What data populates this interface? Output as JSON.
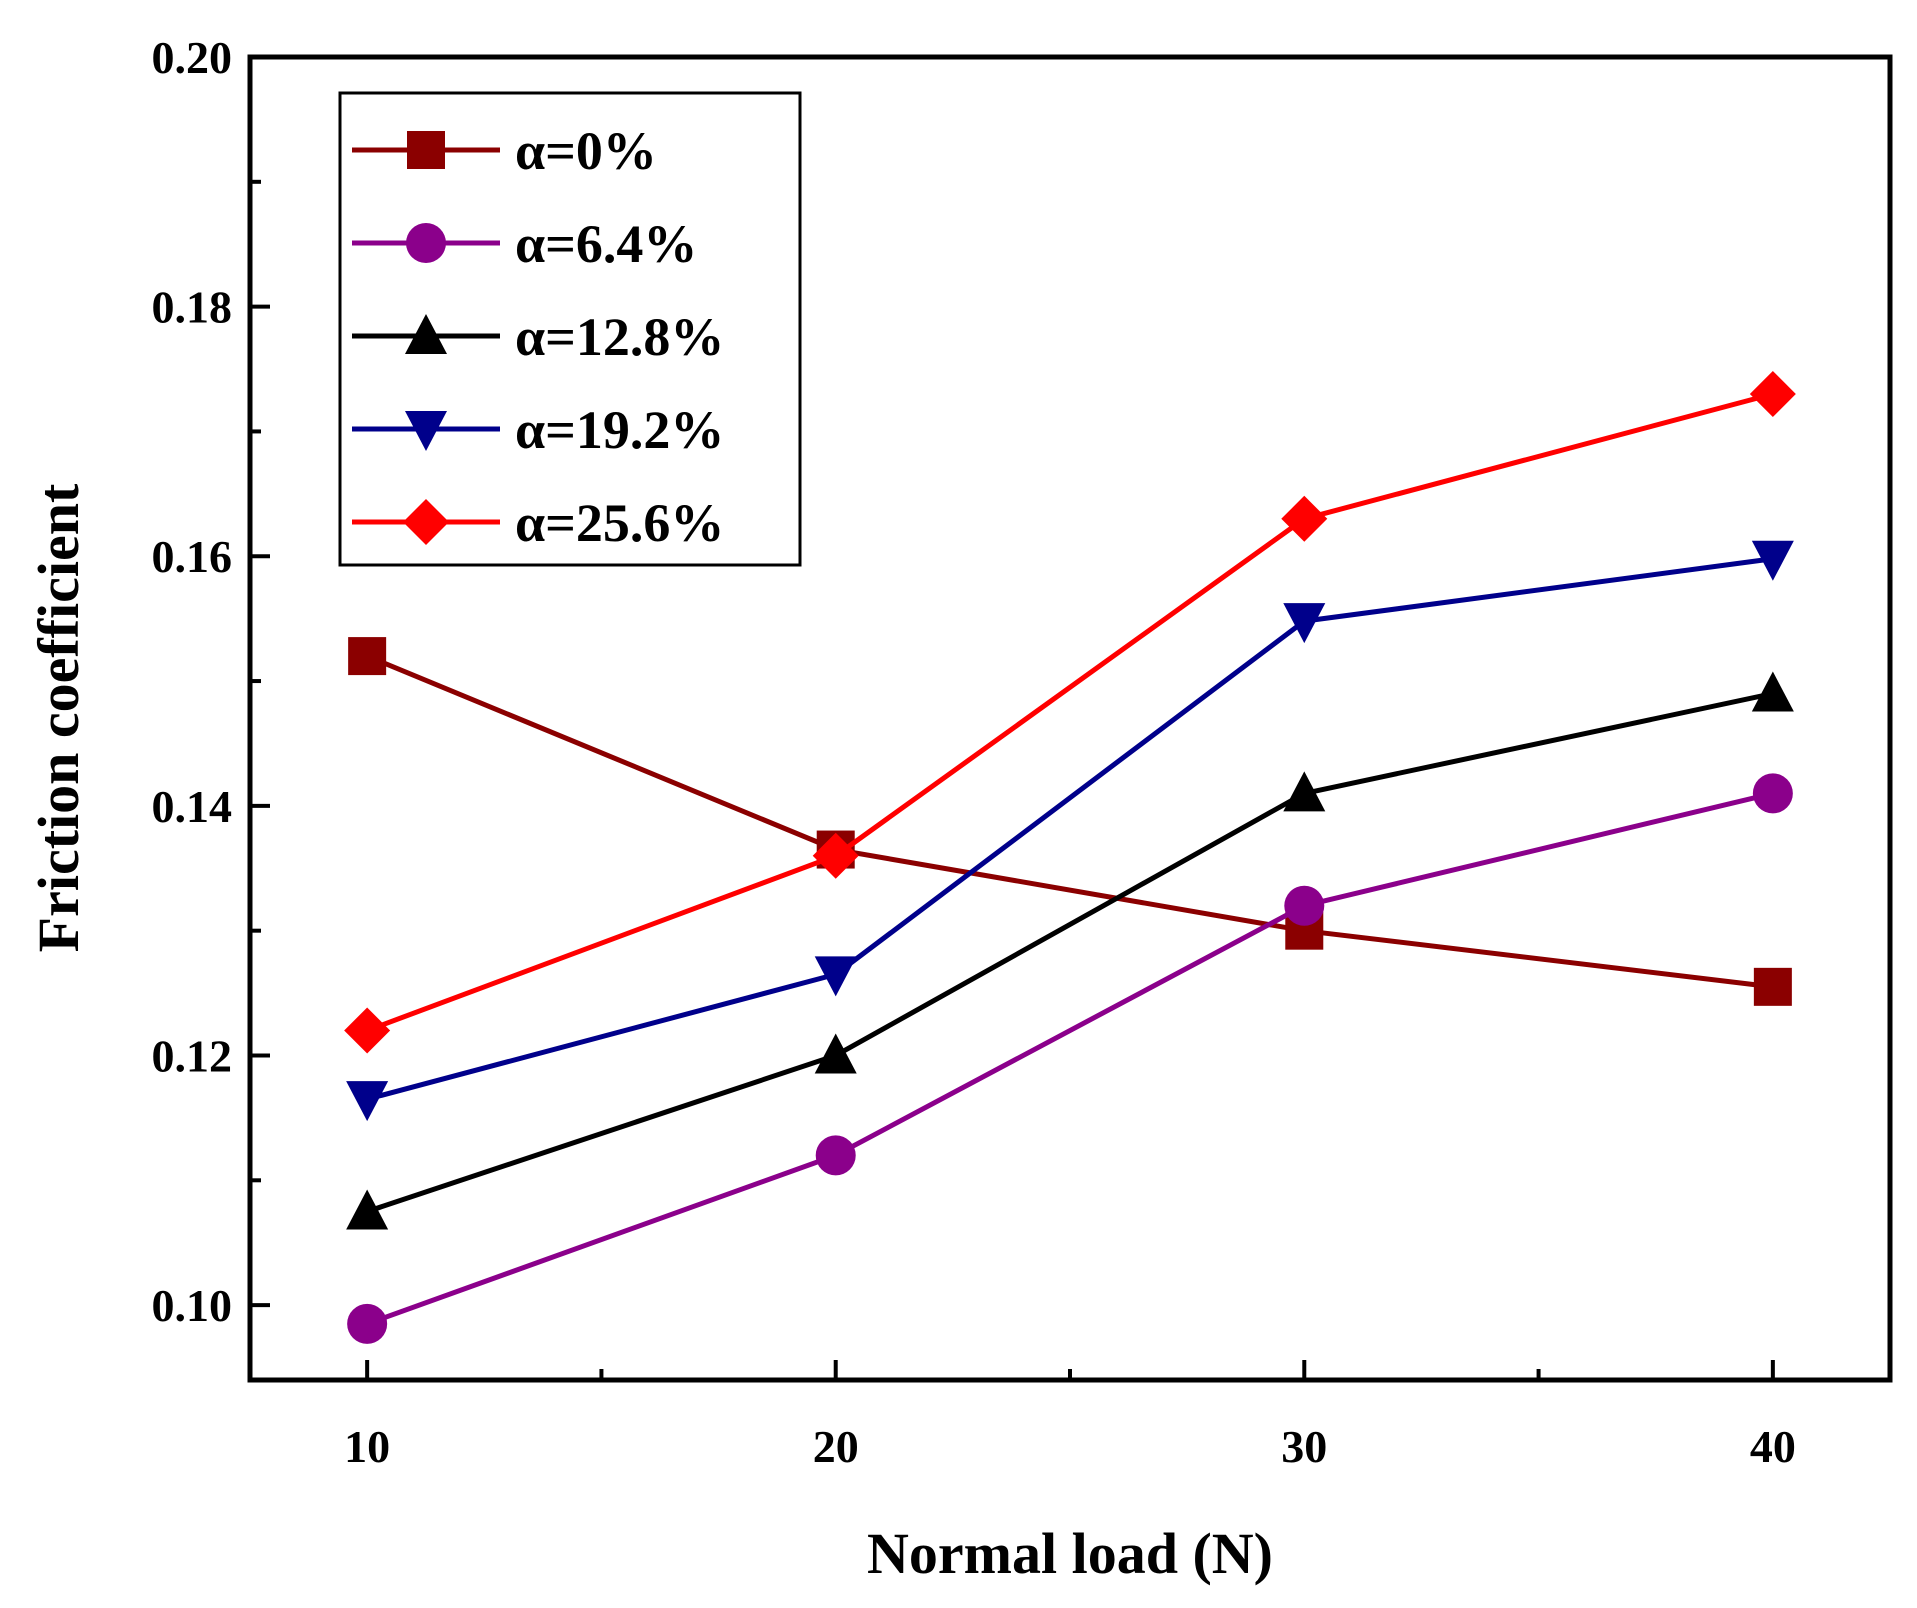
{
  "chart_data": {
    "type": "line",
    "xlabel": "Normal load (N)",
    "ylabel": "Friction coefficient",
    "xlim": [
      7.5,
      42.5
    ],
    "ylim": [
      0.094,
      0.2
    ],
    "x": [
      10,
      20,
      30,
      40
    ],
    "x_ticks": [
      "10",
      "20",
      "30",
      "40"
    ],
    "y_ticks": [
      "0.10",
      "0.12",
      "0.14",
      "0.16",
      "0.18",
      "0.20"
    ],
    "legend_position": "top-left",
    "series": [
      {
        "name": "α=0%",
        "color": "#8b0000",
        "marker": "square",
        "values": [
          0.152,
          0.1365,
          0.13,
          0.1255
        ]
      },
      {
        "name": "α=6.4%",
        "color": "#8b008b",
        "marker": "circle",
        "values": [
          0.0985,
          0.112,
          0.132,
          0.141
        ]
      },
      {
        "name": "α=12.8%",
        "color": "#000000",
        "marker": "triangle-up",
        "values": [
          0.1075,
          0.12,
          0.141,
          0.149
        ]
      },
      {
        "name": "α=19.2%",
        "color": "#00008b",
        "marker": "triangle-down",
        "values": [
          0.1165,
          0.1265,
          0.1548,
          0.1598
        ]
      },
      {
        "name": "α=25.6%",
        "color": "#ff0000",
        "marker": "diamond",
        "values": [
          0.122,
          0.136,
          0.163,
          0.173
        ]
      }
    ]
  }
}
